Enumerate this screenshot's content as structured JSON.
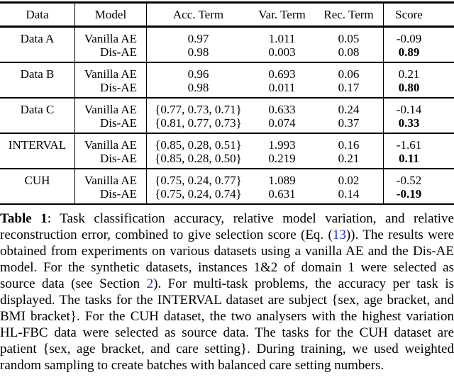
{
  "table": {
    "header": {
      "data": "Data",
      "model": "Model",
      "acc": "Acc. Term",
      "var": "Var. Term",
      "rec": "Rec. Term",
      "score": "Score"
    },
    "groups": [
      {
        "dataset": "Data A",
        "rows": [
          {
            "model": "Vanilla AE",
            "acc": "0.97",
            "var": "1.011",
            "rec": "0.05",
            "score": "-0.09",
            "score_bold": false
          },
          {
            "model": "Dis-AE",
            "acc": "0.98",
            "var": "0.003",
            "rec": "0.08",
            "score": "0.89",
            "score_bold": true
          }
        ]
      },
      {
        "dataset": "Data B",
        "rows": [
          {
            "model": "Vanilla AE",
            "acc": "0.96",
            "var": "0.693",
            "rec": "0.06",
            "score": "0.21",
            "score_bold": false
          },
          {
            "model": "Dis-AE",
            "acc": "0.98",
            "var": "0.011",
            "rec": "0.17",
            "score": "0.80",
            "score_bold": true
          }
        ]
      },
      {
        "dataset": "Data C",
        "rows": [
          {
            "model": "Vanilla AE",
            "acc": "{0.77, 0.73, 0.71}",
            "var": "0.633",
            "rec": "0.24",
            "score": "-0.14",
            "score_bold": false
          },
          {
            "model": "Dis-AE",
            "acc": "{0.81, 0.77, 0.73}",
            "var": "0.074",
            "rec": "0.37",
            "score": "0.33",
            "score_bold": true
          }
        ]
      },
      {
        "dataset": "INTERVAL",
        "rows": [
          {
            "model": "Vanilla AE",
            "acc": "{0.85, 0.28, 0.51}",
            "var": "1.993",
            "rec": "0.16",
            "score": "-1.61",
            "score_bold": false
          },
          {
            "model": "Dis-AE",
            "acc": "{0.85, 0.28, 0.50}",
            "var": "0.219",
            "rec": "0.21",
            "score": "0.11",
            "score_bold": true
          }
        ]
      },
      {
        "dataset": "CUH",
        "rows": [
          {
            "model": "Vanilla AE",
            "acc": "{0.75, 0.24, 0.77}",
            "var": "1.089",
            "rec": "0.02",
            "score": "-0.52",
            "score_bold": false
          },
          {
            "model": "Dis-AE",
            "acc": "{0.75, 0.24, 0.74}",
            "var": "0.631",
            "rec": "0.14",
            "score": "-0.19",
            "score_bold": true
          }
        ]
      }
    ]
  },
  "caption": {
    "segments": [
      {
        "text": "Table 1",
        "style": "bold"
      },
      {
        "text": ": Task classification accuracy, relative model variation, and relative reconstruction error, combined to give selection score (Eq. (",
        "style": "normal"
      },
      {
        "text": "13",
        "style": "link"
      },
      {
        "text": ")). The results were obtained from experiments on various datasets using a vanilla AE and the Dis-AE model. For the synthetic datasets, instances 1&2 of domain 1 were selected as source data (see Section ",
        "style": "normal"
      },
      {
        "text": "2",
        "style": "link"
      },
      {
        "text": "). For multi-task problems, the accuracy per task is displayed. The tasks for the INTERVAL dataset are subject {sex, age bracket, and BMI bracket}. For the CUH dataset, the two analysers with the highest variation HL-FBC data were selected as source data. The tasks for the CUH dataset are patient {sex, age bracket, and care setting}. During training, we used weighted random sampling to create batches with balanced care setting numbers.",
        "style": "normal"
      }
    ]
  },
  "colors": {
    "text": "#000000",
    "background": "#ffffff",
    "link": "#2533c9",
    "rule": "#000000"
  }
}
